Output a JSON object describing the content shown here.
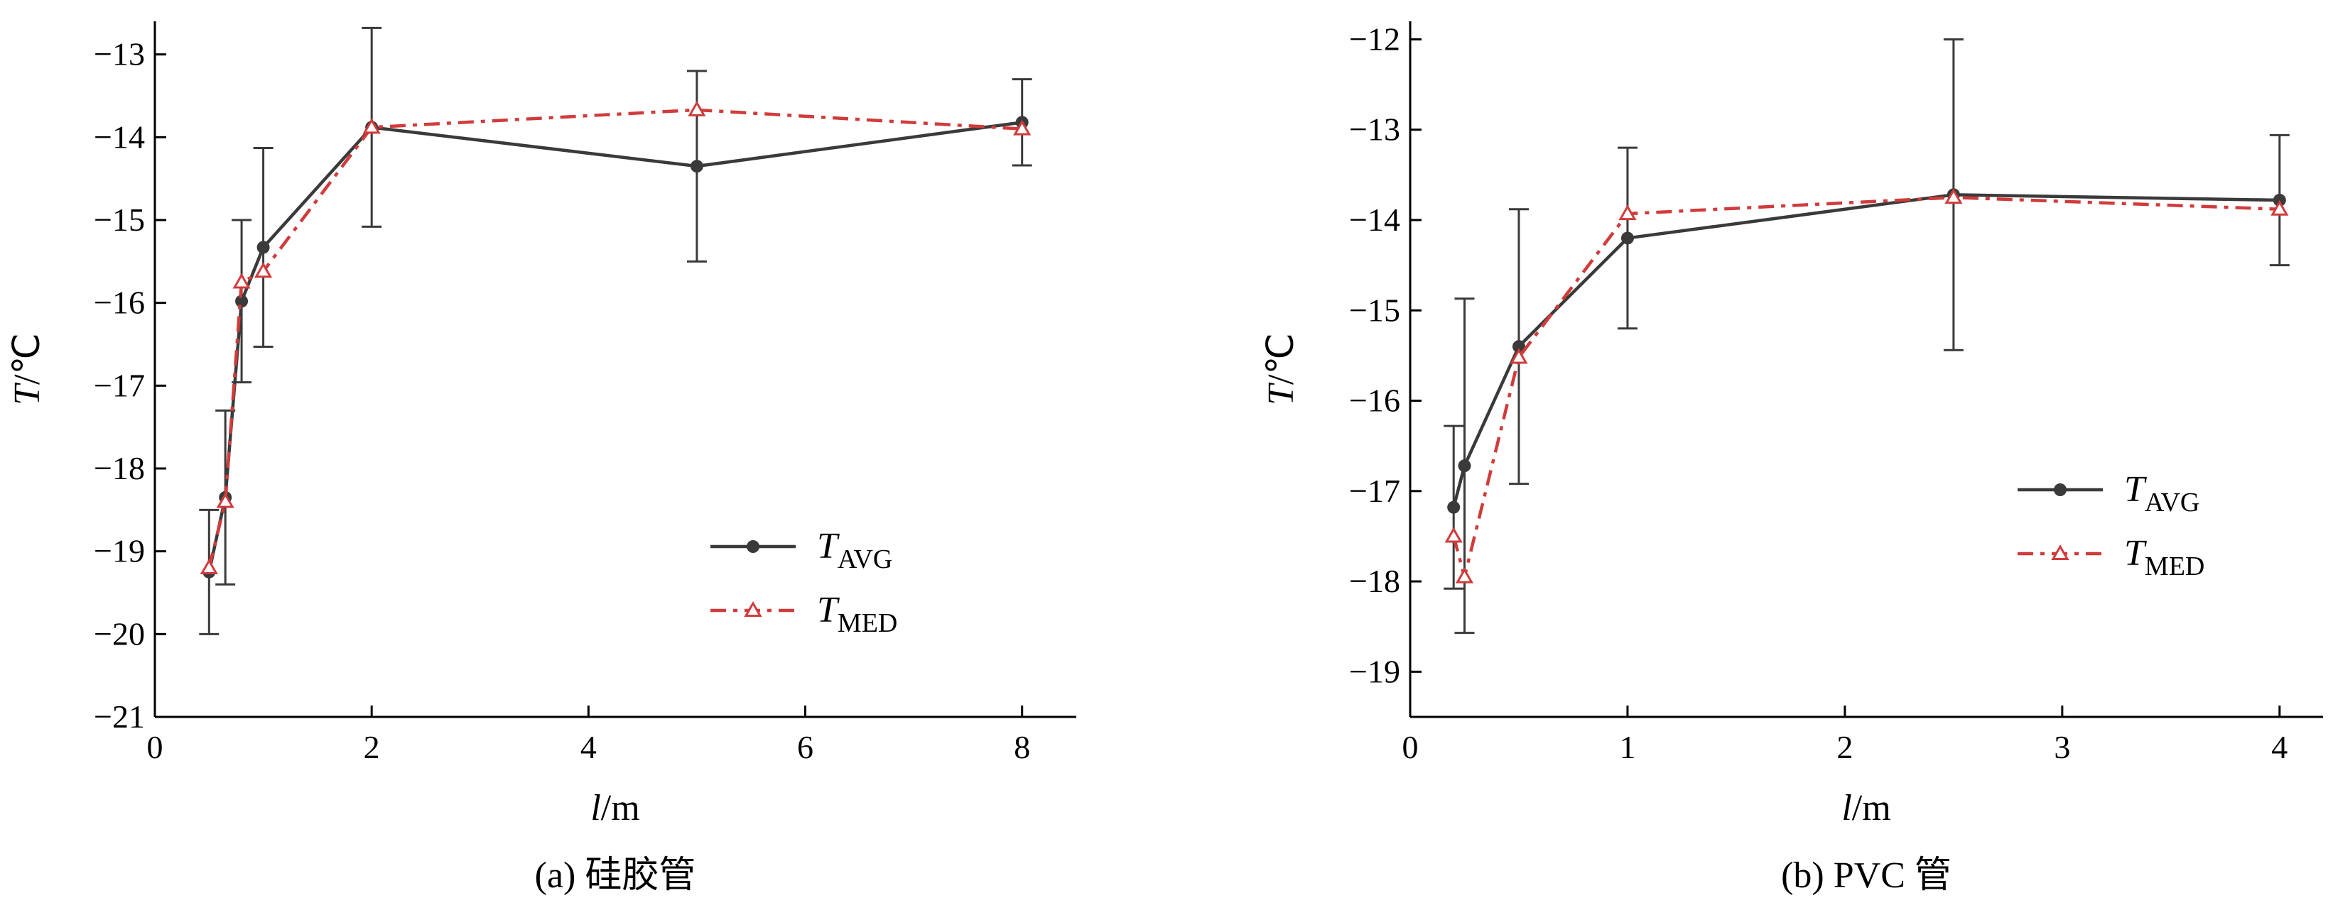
{
  "chart_data": [
    {
      "type": "line",
      "id": "a",
      "caption": "(a)  硅胶管",
      "xlabel_italic": "l",
      "xlabel_unit": "/m",
      "ylabel_italic": "T",
      "ylabel_unit": "/℃",
      "xlim": [
        0,
        8.5
      ],
      "ylim": [
        -21,
        -12.6
      ],
      "xticks": [
        0,
        2,
        4,
        6,
        8
      ],
      "yticks": [
        -21,
        -20,
        -19,
        -18,
        -17,
        -16,
        -15,
        -14,
        -13
      ],
      "ytick_labels": [
        "−21",
        "−20",
        "−19",
        "−18",
        "−17",
        "−16",
        "−15",
        "−14",
        "−13"
      ],
      "xtick_labels": [
        "0",
        "2",
        "4",
        "6",
        "8"
      ],
      "legend_position": "lower-right",
      "series": [
        {
          "name": "T",
          "name_sub": "AVG",
          "color": "#3a3a3a",
          "marker": "circle",
          "dash": "solid",
          "x": [
            0.5,
            0.65,
            0.8,
            1.0,
            2.0,
            5.0,
            8.0
          ],
          "y": [
            -19.25,
            -18.35,
            -15.98,
            -15.33,
            -13.88,
            -14.35,
            -13.82
          ],
          "err": [
            0.75,
            1.05,
            0.98,
            1.2,
            1.2,
            1.15,
            0.52
          ]
        },
        {
          "name": "T",
          "name_sub": "MED",
          "color": "#d13b3b",
          "marker": "triangle",
          "dash": "dashdot",
          "x": [
            0.5,
            0.65,
            0.8,
            1.0,
            2.0,
            5.0,
            8.0
          ],
          "y": [
            -19.2,
            -18.4,
            -15.75,
            -15.62,
            -13.88,
            -13.67,
            -13.9
          ]
        }
      ]
    },
    {
      "type": "line",
      "id": "b",
      "caption": "(b)  PVC 管",
      "xlabel_italic": "l",
      "xlabel_unit": "/m",
      "ylabel_italic": "T",
      "ylabel_unit": "/℃",
      "xlim": [
        0,
        4.2
      ],
      "ylim": [
        -19.5,
        -11.8
      ],
      "xticks": [
        0,
        1,
        2,
        3,
        4
      ],
      "yticks": [
        -19,
        -18,
        -17,
        -16,
        -15,
        -14,
        -13,
        -12
      ],
      "ytick_labels": [
        "−19",
        "−18",
        "−17",
        "−16",
        "−15",
        "−14",
        "−13",
        "−12"
      ],
      "xtick_labels": [
        "0",
        "1",
        "2",
        "3",
        "4"
      ],
      "legend_position": "center-right",
      "series": [
        {
          "name": "T",
          "name_sub": "AVG",
          "color": "#3a3a3a",
          "marker": "circle",
          "dash": "solid",
          "x": [
            0.2,
            0.25,
            0.5,
            1.0,
            2.5,
            4.0
          ],
          "y": [
            -17.18,
            -16.72,
            -15.4,
            -14.2,
            -13.72,
            -13.78
          ],
          "err": [
            0.9,
            1.85,
            1.52,
            1.0,
            1.72,
            0.72
          ]
        },
        {
          "name": "T",
          "name_sub": "MED",
          "color": "#d13b3b",
          "marker": "triangle",
          "dash": "dashdot",
          "x": [
            0.2,
            0.25,
            0.5,
            1.0,
            2.5,
            4.0
          ],
          "y": [
            -17.5,
            -17.95,
            -15.52,
            -13.93,
            -13.75,
            -13.88
          ]
        }
      ]
    }
  ]
}
